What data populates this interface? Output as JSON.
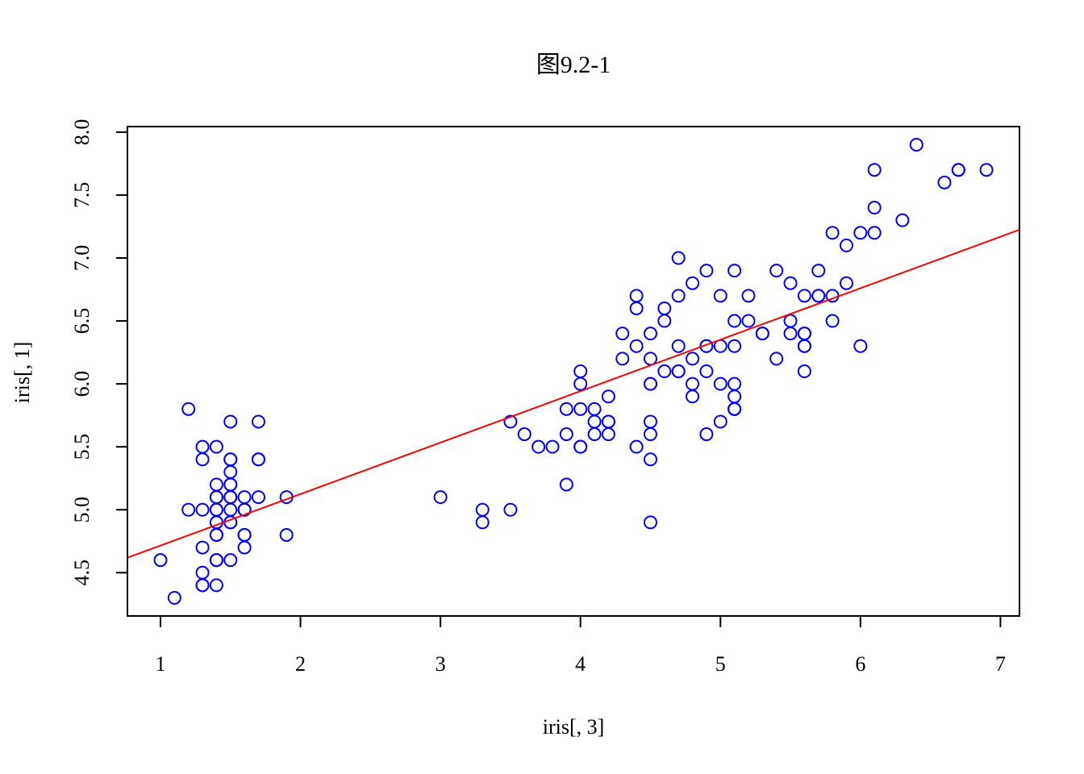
{
  "chart_data": {
    "type": "scatter",
    "title": "图9.2-1",
    "xlabel": "iris[, 3]",
    "ylabel": "iris[, 1]",
    "xlim": [
      0.764,
      7.136
    ],
    "ylim": [
      4.156,
      8.044
    ],
    "xticks": [
      1,
      2,
      3,
      4,
      5,
      6,
      7
    ],
    "yticks": [
      4.5,
      5.0,
      5.5,
      6.0,
      6.5,
      7.0,
      7.5,
      8.0
    ],
    "xtick_labels": [
      "1",
      "2",
      "3",
      "4",
      "5",
      "6",
      "7"
    ],
    "ytick_labels": [
      "4.5",
      "5.0",
      "5.5",
      "6.0",
      "6.5",
      "7.0",
      "7.5",
      "8.0"
    ],
    "grid": false,
    "legend": "none",
    "point_color": "#0000ff",
    "line_color": "#ff0000",
    "series": [
      {
        "points": [
          [
            1.4,
            5.1
          ],
          [
            1.4,
            4.9
          ],
          [
            1.3,
            4.7
          ],
          [
            1.5,
            4.6
          ],
          [
            1.4,
            5.0
          ],
          [
            1.7,
            5.4
          ],
          [
            1.4,
            4.6
          ],
          [
            1.5,
            5.0
          ],
          [
            1.4,
            4.4
          ],
          [
            1.5,
            4.9
          ],
          [
            1.5,
            5.4
          ],
          [
            1.6,
            4.8
          ],
          [
            1.4,
            4.8
          ],
          [
            1.1,
            4.3
          ],
          [
            1.2,
            5.8
          ],
          [
            1.5,
            5.7
          ],
          [
            1.3,
            5.4
          ],
          [
            1.4,
            5.1
          ],
          [
            1.7,
            5.7
          ],
          [
            1.5,
            5.1
          ],
          [
            1.7,
            5.4
          ],
          [
            1.5,
            5.1
          ],
          [
            1.0,
            4.6
          ],
          [
            1.7,
            5.1
          ],
          [
            1.9,
            4.8
          ],
          [
            1.6,
            5.0
          ],
          [
            1.6,
            5.0
          ],
          [
            1.5,
            5.2
          ],
          [
            1.4,
            5.2
          ],
          [
            1.6,
            4.7
          ],
          [
            1.6,
            4.8
          ],
          [
            1.5,
            5.4
          ],
          [
            1.5,
            5.2
          ],
          [
            1.4,
            5.5
          ],
          [
            1.5,
            4.9
          ],
          [
            1.2,
            5.0
          ],
          [
            1.3,
            5.5
          ],
          [
            1.4,
            4.9
          ],
          [
            1.3,
            4.4
          ],
          [
            1.5,
            5.1
          ],
          [
            1.3,
            5.0
          ],
          [
            1.3,
            4.5
          ],
          [
            1.3,
            4.4
          ],
          [
            1.6,
            5.0
          ],
          [
            1.9,
            5.1
          ],
          [
            1.4,
            4.8
          ],
          [
            1.6,
            5.1
          ],
          [
            1.4,
            4.6
          ],
          [
            1.5,
            5.3
          ],
          [
            1.4,
            5.0
          ],
          [
            4.7,
            7.0
          ],
          [
            4.5,
            6.4
          ],
          [
            4.9,
            6.9
          ],
          [
            4.0,
            5.5
          ],
          [
            4.6,
            6.5
          ],
          [
            4.5,
            5.7
          ],
          [
            4.7,
            6.3
          ],
          [
            3.3,
            4.9
          ],
          [
            4.6,
            6.6
          ],
          [
            3.9,
            5.2
          ],
          [
            3.5,
            5.0
          ],
          [
            4.2,
            5.9
          ],
          [
            4.0,
            6.0
          ],
          [
            4.7,
            6.1
          ],
          [
            3.6,
            5.6
          ],
          [
            4.4,
            6.7
          ],
          [
            4.5,
            5.6
          ],
          [
            4.1,
            5.8
          ],
          [
            4.5,
            6.2
          ],
          [
            3.9,
            5.6
          ],
          [
            4.8,
            5.9
          ],
          [
            4.0,
            6.1
          ],
          [
            4.9,
            6.3
          ],
          [
            4.7,
            6.1
          ],
          [
            4.3,
            6.4
          ],
          [
            4.4,
            6.6
          ],
          [
            4.8,
            6.8
          ],
          [
            5.0,
            6.7
          ],
          [
            4.5,
            6.0
          ],
          [
            3.5,
            5.7
          ],
          [
            3.8,
            5.5
          ],
          [
            3.7,
            5.5
          ],
          [
            3.9,
            5.8
          ],
          [
            5.1,
            6.0
          ],
          [
            4.5,
            5.4
          ],
          [
            4.5,
            6.0
          ],
          [
            4.7,
            6.7
          ],
          [
            4.4,
            6.3
          ],
          [
            4.1,
            5.6
          ],
          [
            4.0,
            5.5
          ],
          [
            4.4,
            5.5
          ],
          [
            4.6,
            6.1
          ],
          [
            4.0,
            5.8
          ],
          [
            3.3,
            5.0
          ],
          [
            4.2,
            5.6
          ],
          [
            4.2,
            5.7
          ],
          [
            4.2,
            5.7
          ],
          [
            4.3,
            6.2
          ],
          [
            3.0,
            5.1
          ],
          [
            4.1,
            5.7
          ],
          [
            6.0,
            6.3
          ],
          [
            5.1,
            5.8
          ],
          [
            5.9,
            7.1
          ],
          [
            5.6,
            6.3
          ],
          [
            5.8,
            6.5
          ],
          [
            6.6,
            7.6
          ],
          [
            4.5,
            4.9
          ],
          [
            6.3,
            7.3
          ],
          [
            5.8,
            6.7
          ],
          [
            6.1,
            7.2
          ],
          [
            5.1,
            6.5
          ],
          [
            5.3,
            6.4
          ],
          [
            5.5,
            6.8
          ],
          [
            5.0,
            5.7
          ],
          [
            5.1,
            5.8
          ],
          [
            5.3,
            6.4
          ],
          [
            5.5,
            6.5
          ],
          [
            6.7,
            7.7
          ],
          [
            6.9,
            7.7
          ],
          [
            5.0,
            6.0
          ],
          [
            5.7,
            6.9
          ],
          [
            4.9,
            5.6
          ],
          [
            6.7,
            7.7
          ],
          [
            4.9,
            6.3
          ],
          [
            5.7,
            6.7
          ],
          [
            6.0,
            7.2
          ],
          [
            4.8,
            6.2
          ],
          [
            4.9,
            6.1
          ],
          [
            5.6,
            6.4
          ],
          [
            5.8,
            7.2
          ],
          [
            6.1,
            7.4
          ],
          [
            6.4,
            7.9
          ],
          [
            5.6,
            6.4
          ],
          [
            5.1,
            6.3
          ],
          [
            5.6,
            6.1
          ],
          [
            6.1,
            7.7
          ],
          [
            5.6,
            6.3
          ],
          [
            5.5,
            6.4
          ],
          [
            4.8,
            6.0
          ],
          [
            5.4,
            6.9
          ],
          [
            5.6,
            6.7
          ],
          [
            5.1,
            6.9
          ],
          [
            5.1,
            5.8
          ],
          [
            5.9,
            6.8
          ],
          [
            5.7,
            6.7
          ],
          [
            5.2,
            6.7
          ],
          [
            5.0,
            6.3
          ],
          [
            5.2,
            6.5
          ],
          [
            5.4,
            6.2
          ],
          [
            5.1,
            5.9
          ]
        ]
      }
    ],
    "regression_line": {
      "intercept": 4.3066,
      "slope": 0.4089
    }
  }
}
